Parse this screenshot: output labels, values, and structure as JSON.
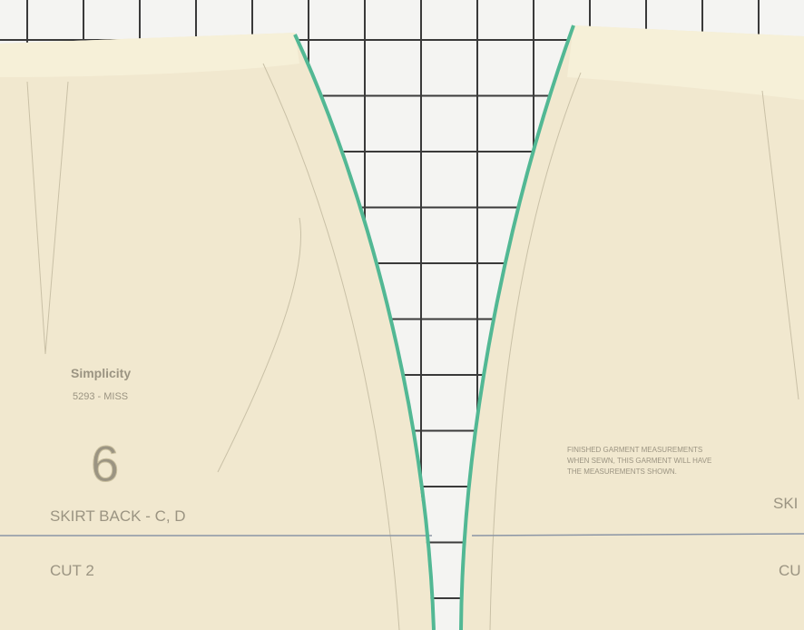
{
  "left_piece": {
    "brand": "Simplicity",
    "pattern": "5293 - MISS",
    "piece_number": "6",
    "piece_name": "SKIRT BACK - C, D",
    "cut": "CUT 2"
  },
  "right_piece": {
    "note_title": "FINISHED GARMENT MEASUREMENTS",
    "note_lines": [
      "WHEN SEWN, THIS GARMENT WILL HAVE",
      "THE MEASUREMENTS SHOWN."
    ],
    "piece_name": "SKI",
    "cut": "CU"
  }
}
